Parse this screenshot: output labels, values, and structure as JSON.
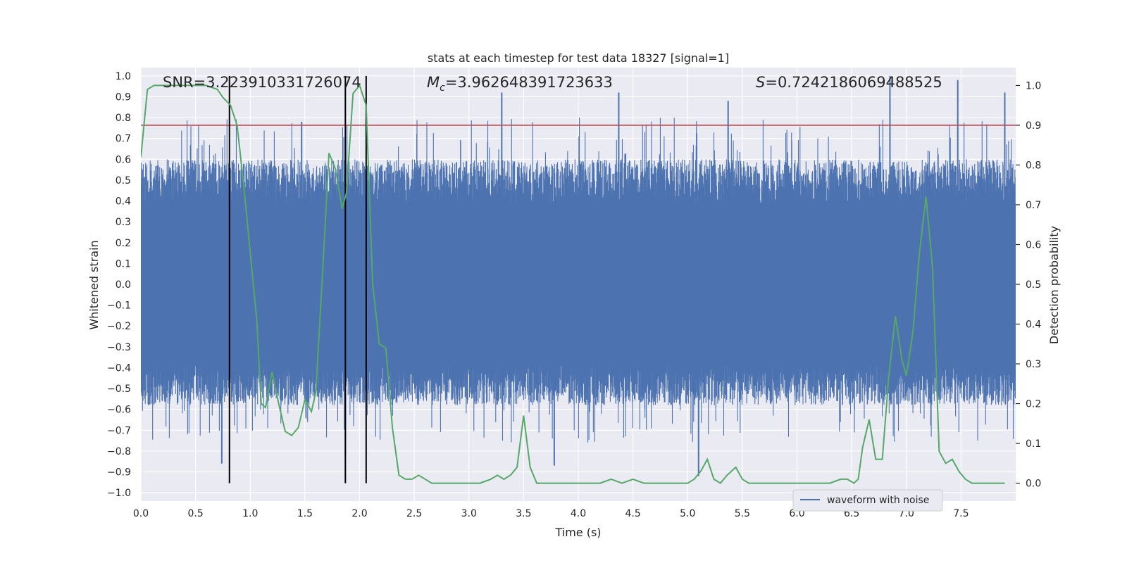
{
  "chart_data": {
    "type": "line",
    "title": "stats at each timestep for test data 18327 [signal=1]",
    "xlabel": "Time (s)",
    "ylabel_left": "Whitened strain",
    "ylabel_right": "Detection probability",
    "xlim": [
      0.0,
      8.0
    ],
    "ylim_left": [
      -1.04,
      1.04
    ],
    "ylim_right": [
      -0.045,
      1.045
    ],
    "x_ticks": [
      "0.0",
      "0.5",
      "1.0",
      "1.5",
      "2.0",
      "2.5",
      "3.0",
      "3.5",
      "4.0",
      "4.5",
      "5.0",
      "5.5",
      "6.0",
      "6.5",
      "7.0",
      "7.5"
    ],
    "y_ticks_left": [
      "1.0",
      "0.9",
      "0.8",
      "0.7",
      "0.6",
      "0.5",
      "0.4",
      "0.3",
      "0.2",
      "0.1",
      "0.0",
      "-0.1",
      "-0.2",
      "-0.3",
      "-0.4",
      "-0.5",
      "-0.6",
      "-0.7",
      "-0.8",
      "-0.9",
      "-1.0"
    ],
    "y_ticks_right": [
      "1.0",
      "0.9",
      "0.8",
      "0.7",
      "0.6",
      "0.5",
      "0.4",
      "0.3",
      "0.2",
      "0.1",
      "0.0"
    ],
    "grid": true,
    "legend_position": "bottom-right",
    "annotations": {
      "snr": "SNR=3.223910331726074",
      "mc_symbol": "M",
      "mc_sub": "c",
      "mc_value": "=3.962648391723633",
      "s_symbol": "S",
      "s_value": "=0.7242186069488525"
    },
    "vertical_markers_x": [
      0.81,
      1.87,
      2.06
    ],
    "threshold_right": 0.9,
    "series": [
      {
        "name": "waveform with noise",
        "axis": "left",
        "color": "#4c72b0",
        "description_envelope": "dense noise mostly within -0.55..0.6 with spikes to about +/-0.95",
        "peak_spikes": [
          {
            "x": 0.74,
            "y": -0.86
          },
          {
            "x": 1.47,
            "y": 0.78
          },
          {
            "x": 1.87,
            "y": -0.82
          },
          {
            "x": 3.3,
            "y": 0.92
          },
          {
            "x": 3.78,
            "y": -0.87
          },
          {
            "x": 4.37,
            "y": 0.92
          },
          {
            "x": 5.1,
            "y": -0.92
          },
          {
            "x": 5.37,
            "y": 0.88
          },
          {
            "x": 6.85,
            "y": 1.0
          },
          {
            "x": 7.47,
            "y": 0.98
          },
          {
            "x": 7.9,
            "y": 0.92
          }
        ]
      },
      {
        "name": "detection probability",
        "axis": "right",
        "color": "#55a868",
        "x": [
          0.0,
          0.06,
          0.12,
          0.2,
          0.3,
          0.4,
          0.5,
          0.6,
          0.7,
          0.75,
          0.82,
          0.88,
          0.94,
          1.0,
          1.06,
          1.1,
          1.14,
          1.2,
          1.26,
          1.32,
          1.38,
          1.44,
          1.5,
          1.56,
          1.6,
          1.66,
          1.72,
          1.78,
          1.84,
          1.88,
          1.94,
          2.0,
          2.06,
          2.12,
          2.18,
          2.24,
          2.3,
          2.36,
          2.42,
          2.48,
          2.54,
          2.6,
          2.66,
          2.72,
          2.8,
          2.9,
          3.0,
          3.1,
          3.2,
          3.26,
          3.32,
          3.38,
          3.44,
          3.5,
          3.56,
          3.62,
          3.7,
          3.8,
          3.9,
          4.0,
          4.1,
          4.2,
          4.3,
          4.4,
          4.5,
          4.6,
          4.7,
          4.8,
          4.9,
          5.0,
          5.06,
          5.12,
          5.18,
          5.24,
          5.3,
          5.36,
          5.44,
          5.5,
          5.56,
          5.6,
          5.7,
          5.8,
          5.9,
          6.0,
          6.1,
          6.2,
          6.3,
          6.4,
          6.46,
          6.52,
          6.56,
          6.6,
          6.66,
          6.72,
          6.78,
          6.84,
          6.9,
          6.96,
          7.0,
          7.06,
          7.12,
          7.18,
          7.24,
          7.3,
          7.36,
          7.42,
          7.48,
          7.54,
          7.6,
          7.7,
          7.8,
          7.9
        ],
        "y": [
          0.82,
          0.99,
          1.0,
          1.0,
          1.0,
          1.0,
          1.0,
          1.0,
          0.99,
          0.97,
          0.95,
          0.9,
          0.75,
          0.58,
          0.41,
          0.2,
          0.19,
          0.28,
          0.2,
          0.13,
          0.12,
          0.14,
          0.21,
          0.18,
          0.23,
          0.52,
          0.83,
          0.79,
          0.69,
          0.73,
          0.98,
          1.0,
          0.95,
          0.5,
          0.35,
          0.34,
          0.14,
          0.02,
          0.01,
          0.01,
          0.02,
          0.01,
          0.0,
          0.0,
          0.0,
          0.0,
          0.0,
          0.0,
          0.01,
          0.02,
          0.01,
          0.02,
          0.04,
          0.17,
          0.04,
          0.0,
          0.0,
          0.0,
          0.0,
          0.0,
          0.0,
          0.0,
          0.01,
          0.0,
          0.01,
          0.0,
          0.0,
          0.0,
          0.0,
          0.0,
          0.01,
          0.03,
          0.06,
          0.01,
          0.0,
          0.02,
          0.04,
          0.01,
          0.0,
          0.0,
          0.0,
          0.0,
          0.0,
          0.0,
          0.0,
          0.0,
          0.0,
          0.01,
          0.01,
          0.0,
          0.01,
          0.09,
          0.16,
          0.06,
          0.06,
          0.27,
          0.42,
          0.31,
          0.27,
          0.38,
          0.58,
          0.72,
          0.54,
          0.08,
          0.05,
          0.06,
          0.03,
          0.01,
          0.0,
          0.0,
          0.0,
          0.0
        ]
      }
    ],
    "colors": {
      "background": "#eaeaf2",
      "grid": "#ffffff",
      "strain": "#4c72b0",
      "probability": "#55a868",
      "threshold": "#c44e52",
      "markers": "#000000"
    }
  },
  "legend": {
    "entries": [
      {
        "label": "waveform with noise",
        "color": "#4c72b0"
      }
    ]
  }
}
